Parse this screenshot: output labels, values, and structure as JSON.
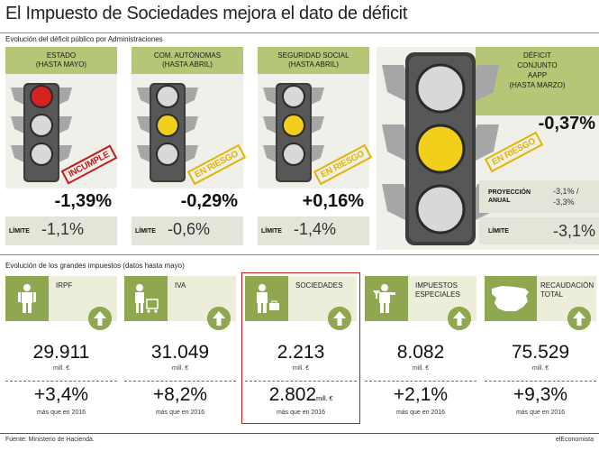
{
  "title": "El Impuesto de Sociedades mejora el dato de déficit",
  "subtitle": "Evolución del déficit público por Administraciones",
  "admins": [
    {
      "label_1": "ESTADO",
      "label_2": "(HASTA MAYO)",
      "light": "red",
      "stamp": "INCUMPLE",
      "value": "-1,39%",
      "limit_label": "LÍMITE",
      "limit": "-1,1%"
    },
    {
      "label_1": "COM. AUTÓNOMAS",
      "label_2": "(HASTA ABRIL)",
      "light": "yellow",
      "stamp": "EN RIESGO",
      "value": "-0,29%",
      "limit_label": "LÍMITE",
      "limit": "-0,6%"
    },
    {
      "label_1": "SEGURIDAD SOCIAL",
      "label_2": "(HASTA ABRIL)",
      "light": "yellow",
      "stamp": "EN RIESGO",
      "value": "+0,16%",
      "limit_label": "LÍMITE",
      "limit": "-1,4%"
    }
  ],
  "conjunto": {
    "label_1": "DÉFICIT",
    "label_2": "CONJUNTO",
    "label_3": "AAPP",
    "label_4": "(HASTA MARZO)",
    "light": "yellow",
    "stamp": "EN RIESGO",
    "value": "-0,37%",
    "proj_label_1": "PROYECCIÓN",
    "proj_label_2": "ANUAL",
    "proj_1": "-3,1% /",
    "proj_2": "-3,3%",
    "limit_label": "LÍMITE",
    "limit": "-3,1%"
  },
  "section2": "Evolución de los grandes impuestos (datos hasta mayo)",
  "taxes": [
    {
      "label_1": "IRPF",
      "label_2": "",
      "icon": "person-icon",
      "value": "29.911",
      "unit": "mill. €",
      "pct": "+3,4%",
      "mas": "más que en 2016",
      "highlight": false
    },
    {
      "label_1": "IVA",
      "label_2": "",
      "icon": "shopping-cart-icon",
      "value": "31.049",
      "unit": "mill. €",
      "pct": "+8,2%",
      "mas": "más que en 2016",
      "highlight": false
    },
    {
      "label_1": "SOCIEDADES",
      "label_2": "",
      "icon": "briefcase-icon",
      "value": "2.213",
      "unit": "mill. €",
      "pct": "2.802",
      "pct_unit": "mill. €",
      "mas": "más que en 2016",
      "highlight": true
    },
    {
      "label_1": "IMPUESTOS",
      "label_2": "ESPECIALES",
      "icon": "drink-icon",
      "value": "8.082",
      "unit": "mill. €",
      "pct": "+2,1%",
      "mas": "más que en 2016",
      "highlight": false
    },
    {
      "label_1": "RECAUDACIÓN",
      "label_2": "TOTAL",
      "icon": "spain-map-icon",
      "value": "75.529",
      "unit": "mill. €",
      "pct": "+9,3%",
      "mas": "más que en 2016",
      "highlight": false
    }
  ],
  "footer_source": "Fuente: Ministerio de Hacienda.",
  "footer_brand": "elEconomista",
  "colors": {
    "green": "#b6c677",
    "icon_green": "#8fa84f",
    "red": "#c51a1a",
    "yellow": "#e2b400",
    "amber_light": "#f1cf1b"
  }
}
